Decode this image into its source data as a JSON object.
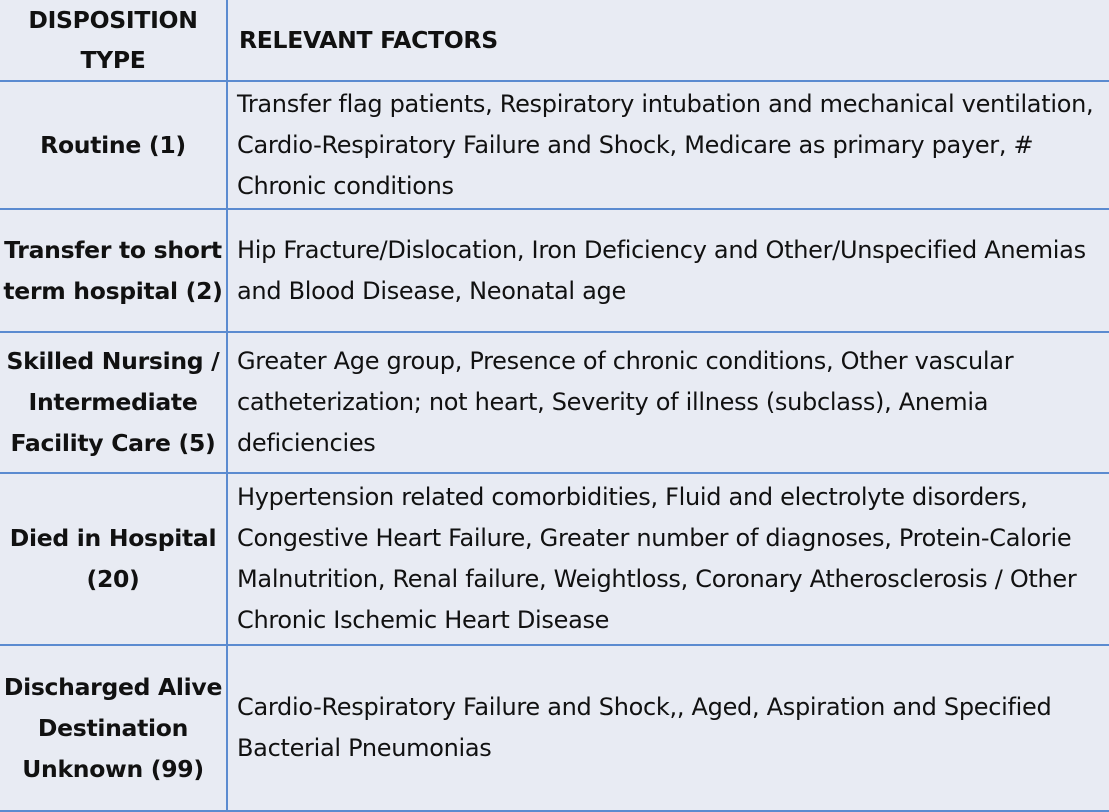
{
  "header": {
    "disposition_type": "DISPOSITION TYPE",
    "relevant_factors": "RELEVANT FACTORS"
  },
  "rows": [
    {
      "disposition": "Routine (1)",
      "factors": "Transfer flag patients, Respiratory intubation and mechanical ventilation, Cardio-Respiratory Failure and Shock, Medicare as primary payer, # Chronic conditions"
    },
    {
      "disposition": "Transfer to short term hospital (2)",
      "factors": "Hip Fracture/Dislocation, Iron Deficiency and Other/Unspecified Anemias and Blood Disease, Neonatal age"
    },
    {
      "disposition": "Skilled Nursing / Intermediate Facility Care (5)",
      "factors": "Greater Age group, Presence of chronic conditions, Other vascular catheterization; not heart, Severity of illness (subclass), Anemia deficiencies"
    },
    {
      "disposition": "Died in Hospital (20)",
      "factors": "Hypertension related comorbidities, Fluid and electrolyte disorders, Congestive Heart Failure, Greater number of diagnoses, Protein-Calorie Malnutrition, Renal failure, Weightloss, Coronary Atherosclerosis / Other Chronic Ischemic Heart Disease"
    },
    {
      "disposition": "Discharged Alive Destination Unknown (99)",
      "factors": "Cardio-Respiratory Failure and Shock,, Aged, Aspiration and Specified Bacterial Pneumonias"
    }
  ]
}
